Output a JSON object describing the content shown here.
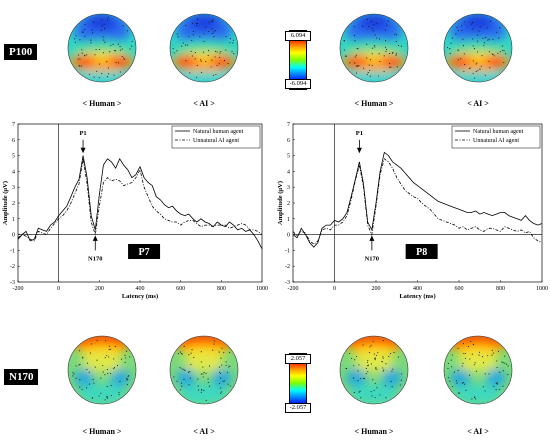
{
  "p100": {
    "label": "P100",
    "scale_max": "6.094",
    "scale_min": "-6.094",
    "maps": [
      {
        "caption": "< Human >",
        "pattern": "p100"
      },
      {
        "caption": "< AI >",
        "pattern": "p100"
      },
      {
        "caption": "< Human >",
        "pattern": "p100"
      },
      {
        "caption": "< AI >",
        "pattern": "p100"
      }
    ]
  },
  "n170": {
    "label": "N170",
    "scale_max": "2.057",
    "scale_min": "-2.057",
    "maps": [
      {
        "caption": "< Human >",
        "pattern": "n170"
      },
      {
        "caption": "< AI >",
        "pattern": "n170"
      },
      {
        "caption": "< Human >",
        "pattern": "n170"
      },
      {
        "caption": "< AI >",
        "pattern": "n170"
      }
    ]
  },
  "chart_data": [
    {
      "type": "line",
      "title": "P7",
      "xlabel": "Latency (ms)",
      "ylabel": "Amplitude (μV)",
      "xlim": [
        -200,
        1000
      ],
      "ylim": [
        -3,
        7
      ],
      "xticks": [
        -200,
        0,
        200,
        400,
        600,
        800,
        1000
      ],
      "yticks": [
        -3,
        -2,
        -1,
        0,
        1,
        2,
        3,
        4,
        5,
        6,
        7
      ],
      "legend": "top-right",
      "annotations": [
        "P1",
        "N170"
      ],
      "series": [
        {
          "name": "Natural human agent",
          "style": "solid",
          "x": [
            -200,
            -180,
            -160,
            -140,
            -120,
            -100,
            -80,
            -60,
            -40,
            -20,
            0,
            20,
            40,
            60,
            80,
            100,
            120,
            140,
            160,
            180,
            200,
            220,
            240,
            260,
            280,
            300,
            320,
            340,
            360,
            380,
            400,
            420,
            440,
            460,
            480,
            500,
            520,
            540,
            560,
            580,
            600,
            620,
            640,
            660,
            680,
            700,
            720,
            740,
            760,
            780,
            800,
            820,
            840,
            860,
            880,
            900,
            920,
            940,
            960,
            980,
            1000
          ],
          "y": [
            -0.3,
            0.0,
            0.2,
            -0.4,
            -0.3,
            0.4,
            0.3,
            0.2,
            0.6,
            0.8,
            1.2,
            1.5,
            1.8,
            2.4,
            3.0,
            3.5,
            5.0,
            3.6,
            1.2,
            0.3,
            2.5,
            4.4,
            4.8,
            4.6,
            4.2,
            4.8,
            4.4,
            4.1,
            3.6,
            3.8,
            4.3,
            3.6,
            3.3,
            3.1,
            2.4,
            2.2,
            1.9,
            1.7,
            1.8,
            1.5,
            1.3,
            1.2,
            1.3,
            1.0,
            0.8,
            1.0,
            0.8,
            0.7,
            0.5,
            0.8,
            0.6,
            0.5,
            0.8,
            0.6,
            0.3,
            0.4,
            0.2,
            0.3,
            0.0,
            -0.4,
            -0.9
          ]
        },
        {
          "name": "Unnatural AI agent",
          "style": "dash-dot",
          "x": [
            -200,
            -180,
            -160,
            -140,
            -120,
            -100,
            -80,
            -60,
            -40,
            -20,
            0,
            20,
            40,
            60,
            80,
            100,
            120,
            140,
            160,
            180,
            200,
            220,
            240,
            260,
            280,
            300,
            320,
            340,
            360,
            380,
            400,
            420,
            440,
            460,
            480,
            500,
            520,
            540,
            560,
            580,
            600,
            620,
            640,
            660,
            680,
            700,
            720,
            740,
            760,
            780,
            800,
            820,
            840,
            860,
            880,
            900,
            920,
            940,
            960,
            980,
            1000
          ],
          "y": [
            -0.2,
            0.0,
            -0.1,
            -0.3,
            -0.4,
            0.2,
            0.1,
            0.0,
            0.4,
            0.7,
            1.0,
            1.2,
            1.5,
            2.0,
            2.6,
            3.2,
            4.8,
            3.2,
            0.8,
            0.0,
            1.8,
            3.3,
            3.6,
            3.4,
            3.5,
            3.4,
            3.1,
            3.2,
            3.3,
            3.6,
            4.1,
            3.0,
            2.4,
            1.8,
            1.5,
            1.3,
            1.0,
            0.9,
            0.8,
            0.8,
            0.6,
            0.8,
            0.9,
            0.9,
            0.7,
            0.5,
            0.6,
            0.6,
            0.5,
            0.6,
            0.6,
            0.6,
            0.4,
            0.5,
            0.6,
            0.7,
            0.6,
            0.3,
            0.3,
            0.2,
            0.0
          ]
        }
      ]
    },
    {
      "type": "line",
      "title": "P8",
      "xlabel": "Latency (ms)",
      "ylabel": "Amplitude (μV)",
      "xlim": [
        -200,
        1000
      ],
      "ylim": [
        -3,
        7
      ],
      "xticks": [
        -200,
        0,
        200,
        400,
        600,
        800,
        1000
      ],
      "yticks": [
        -3,
        -2,
        -1,
        0,
        1,
        2,
        3,
        4,
        5,
        6,
        7
      ],
      "legend": "top-right",
      "annotations": [
        "P1",
        "N170"
      ],
      "series": [
        {
          "name": "Natural human agent",
          "style": "solid",
          "x": [
            -200,
            -180,
            -160,
            -140,
            -120,
            -100,
            -80,
            -60,
            -40,
            -20,
            0,
            20,
            40,
            60,
            80,
            100,
            120,
            140,
            160,
            180,
            200,
            220,
            240,
            260,
            280,
            300,
            320,
            340,
            360,
            380,
            400,
            420,
            440,
            460,
            480,
            500,
            520,
            540,
            560,
            580,
            600,
            620,
            640,
            660,
            680,
            700,
            720,
            740,
            760,
            780,
            800,
            820,
            840,
            860,
            880,
            900,
            920,
            940,
            960,
            980,
            1000
          ],
          "y": [
            0.0,
            -0.2,
            0.4,
            0.0,
            -0.5,
            -0.8,
            -0.5,
            0.4,
            0.6,
            0.6,
            0.9,
            0.8,
            1.0,
            1.4,
            2.4,
            3.5,
            4.6,
            3.2,
            0.8,
            0.3,
            2.0,
            4.0,
            5.2,
            5.0,
            4.6,
            4.4,
            4.2,
            3.9,
            3.6,
            3.3,
            3.1,
            2.9,
            2.7,
            2.5,
            2.3,
            2.1,
            2.0,
            1.9,
            1.8,
            1.7,
            1.6,
            1.5,
            1.4,
            1.4,
            1.5,
            1.3,
            1.4,
            1.3,
            1.2,
            1.3,
            1.4,
            1.4,
            1.2,
            1.1,
            1.0,
            0.9,
            1.2,
            0.9,
            0.7,
            0.6,
            0.7
          ]
        },
        {
          "name": "Unnatural AI agent",
          "style": "dash-dot",
          "x": [
            -200,
            -180,
            -160,
            -140,
            -120,
            -100,
            -80,
            -60,
            -40,
            -20,
            0,
            20,
            40,
            60,
            80,
            100,
            120,
            140,
            160,
            180,
            200,
            220,
            240,
            260,
            280,
            300,
            320,
            340,
            360,
            380,
            400,
            420,
            440,
            460,
            480,
            500,
            520,
            540,
            560,
            580,
            600,
            620,
            640,
            660,
            680,
            700,
            720,
            740,
            760,
            780,
            800,
            820,
            840,
            860,
            880,
            900,
            920,
            940,
            960,
            980,
            1000
          ],
          "y": [
            0.2,
            -0.1,
            0.2,
            0.1,
            -0.4,
            -0.6,
            -0.4,
            0.3,
            0.4,
            0.3,
            0.6,
            0.6,
            0.8,
            1.2,
            2.2,
            3.4,
            4.4,
            3.0,
            0.6,
            0.0,
            1.8,
            3.8,
            4.8,
            4.6,
            4.2,
            3.6,
            3.2,
            2.8,
            2.6,
            2.4,
            2.3,
            2.0,
            1.8,
            1.6,
            1.3,
            1.0,
            0.9,
            0.8,
            0.7,
            0.6,
            0.4,
            0.5,
            0.3,
            0.4,
            0.5,
            0.3,
            0.2,
            0.4,
            0.4,
            0.3,
            0.2,
            0.5,
            0.4,
            0.3,
            0.2,
            0.3,
            0.1,
            0.2,
            -0.2,
            -0.4,
            -0.5
          ]
        }
      ]
    }
  ]
}
